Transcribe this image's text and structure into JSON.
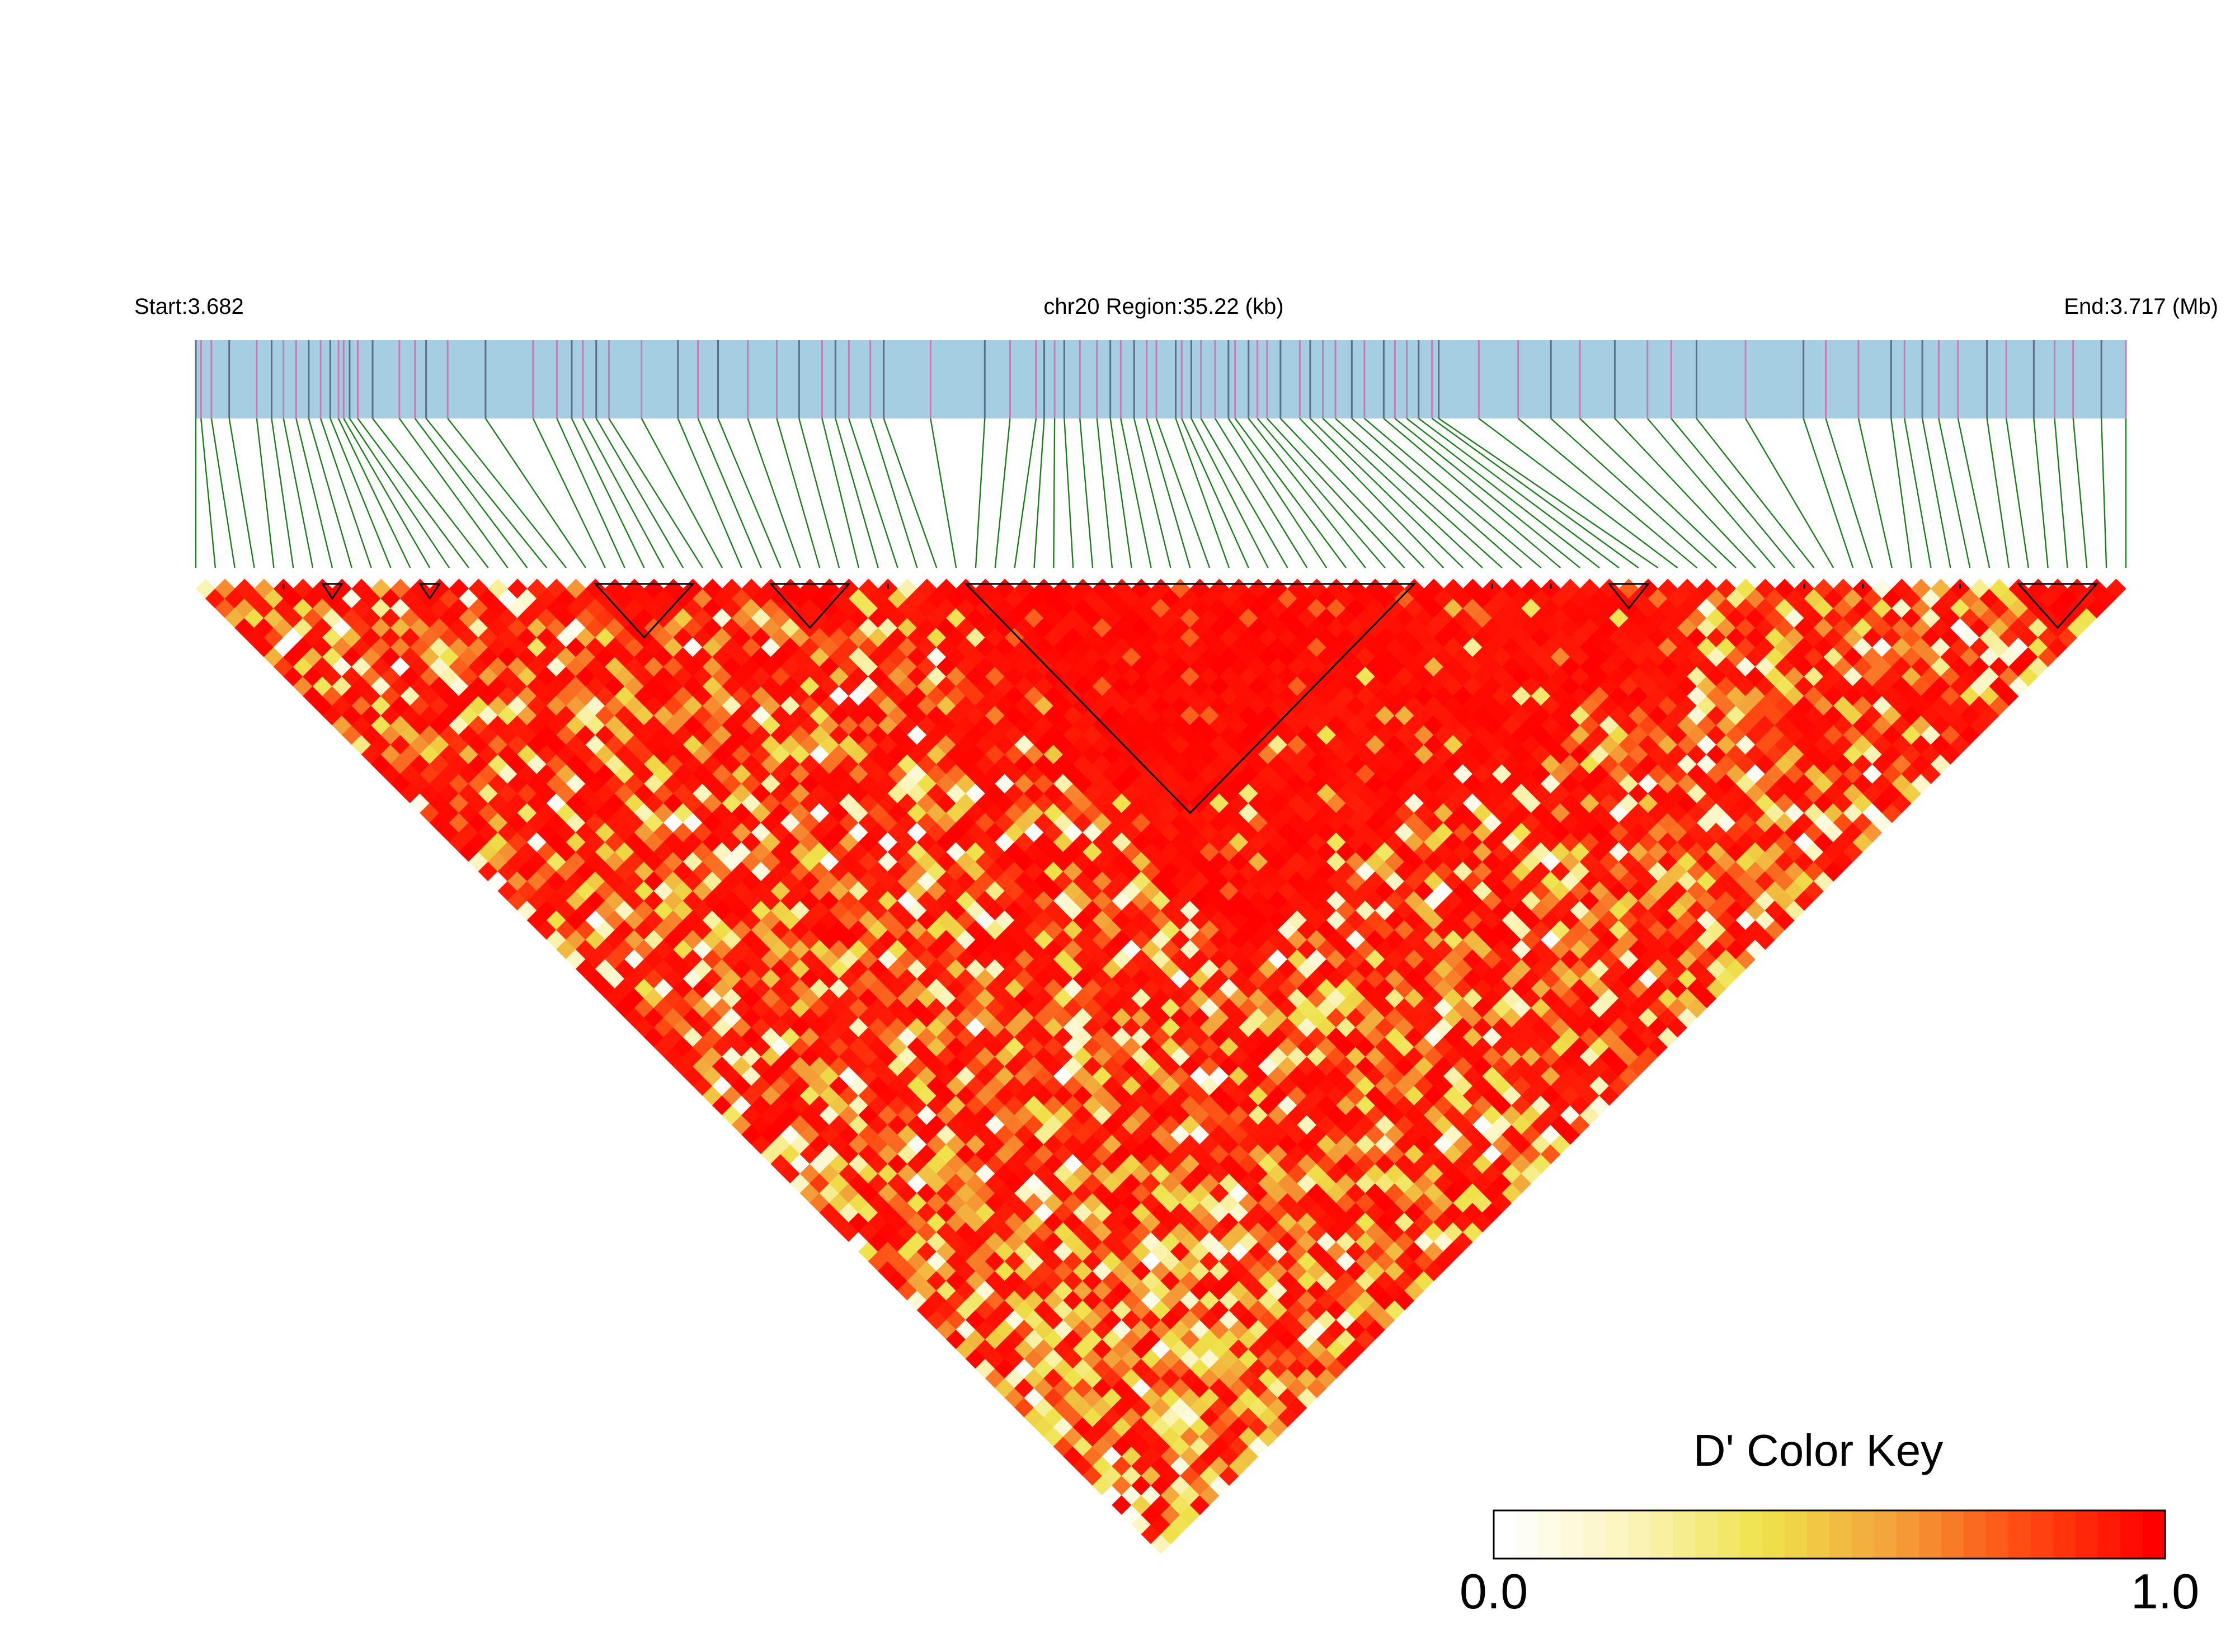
{
  "chart_data": {
    "type": "heatmap",
    "subtype": "linkage-disequilibrium-triangle",
    "header": {
      "start_label": "Start:3.682",
      "region_label": "chr20 Region:35.22 (kb)",
      "end_label": "End:3.717 (Mb)"
    },
    "region": {
      "chromosome": "chr20",
      "start_mb": 3.682,
      "end_mb": 3.717,
      "length_kb": 35.22
    },
    "snp_count": 100,
    "snp_positions_mb": [
      3.682,
      3.68207,
      3.68221,
      3.68245,
      3.68282,
      3.68302,
      3.68318,
      3.68335,
      3.68352,
      3.68368,
      3.68381,
      3.68392,
      3.68399,
      3.68407,
      3.68418,
      3.68438,
      3.68474,
      3.68495,
      3.6851,
      3.68539,
      3.6859,
      3.68654,
      3.68686,
      3.68706,
      3.68721,
      3.68739,
      3.68756,
      3.688,
      3.68849,
      3.68876,
      3.68903,
      3.68943,
      3.68982,
      3.69012,
      3.69043,
      3.69061,
      3.69079,
      3.69108,
      3.69126,
      3.69189,
      3.69262,
      3.69296,
      3.69331,
      3.69342,
      3.69356,
      3.69369,
      3.6939,
      3.69413,
      3.69431,
      3.69445,
      3.69463,
      3.6948,
      3.69493,
      3.69519,
      3.69527,
      3.6954,
      3.69553,
      3.69572,
      3.6959,
      3.69599,
      3.69617,
      3.69629,
      3.69642,
      3.6966,
      3.69686,
      3.697,
      3.69717,
      3.69734,
      3.69756,
      3.69773,
      3.69799,
      3.69814,
      3.6983,
      3.69846,
      3.69864,
      3.69873,
      3.69927,
      3.6998,
      3.70024,
      3.70063,
      3.7011,
      3.70154,
      3.70186,
      3.7022,
      3.70286,
      3.70364,
      3.70394,
      3.70438,
      3.70482,
      3.705,
      3.70524,
      3.70546,
      3.70572,
      3.70611,
      3.70637,
      3.70674,
      3.70702,
      3.70727,
      3.70765,
      3.70798
    ],
    "snp_track_colors": {
      "variant_a": "#5a6e86",
      "variant_b": "#c879b8"
    },
    "track_fill_color": "#a6cee3",
    "connector_color": "#1a7f1a",
    "blocks": [
      {
        "first_snp": 4,
        "last_snp": 5
      },
      {
        "first_snp": 6,
        "last_snp": 8
      },
      {
        "first_snp": 11,
        "last_snp": 13
      },
      {
        "first_snp": 20,
        "last_snp": 26
      },
      {
        "first_snp": 29,
        "last_snp": 34
      },
      {
        "first_snp": 35,
        "last_snp": 36
      },
      {
        "first_snp": 39,
        "last_snp": 63
      },
      {
        "first_snp": 66,
        "last_snp": 67
      },
      {
        "first_snp": 69,
        "last_snp": 70
      },
      {
        "first_snp": 72,
        "last_snp": 75
      },
      {
        "first_snp": 82,
        "last_snp": 83
      },
      {
        "first_snp": 85,
        "last_snp": 86
      },
      {
        "first_snp": 90,
        "last_snp": 91
      },
      {
        "first_snp": 93,
        "last_snp": 98
      }
    ],
    "matrix_note_seed": 7331,
    "color_key": {
      "title": "D' Color Key",
      "min_label": "0.0",
      "max_label": "1.0",
      "min": 0.0,
      "max": 1.0,
      "steps": 30,
      "colors": [
        "#ffffff",
        "#fbf4b8",
        "#efe24a",
        "#f3a23a",
        "#ff4a12",
        "#ff0000"
      ]
    }
  }
}
